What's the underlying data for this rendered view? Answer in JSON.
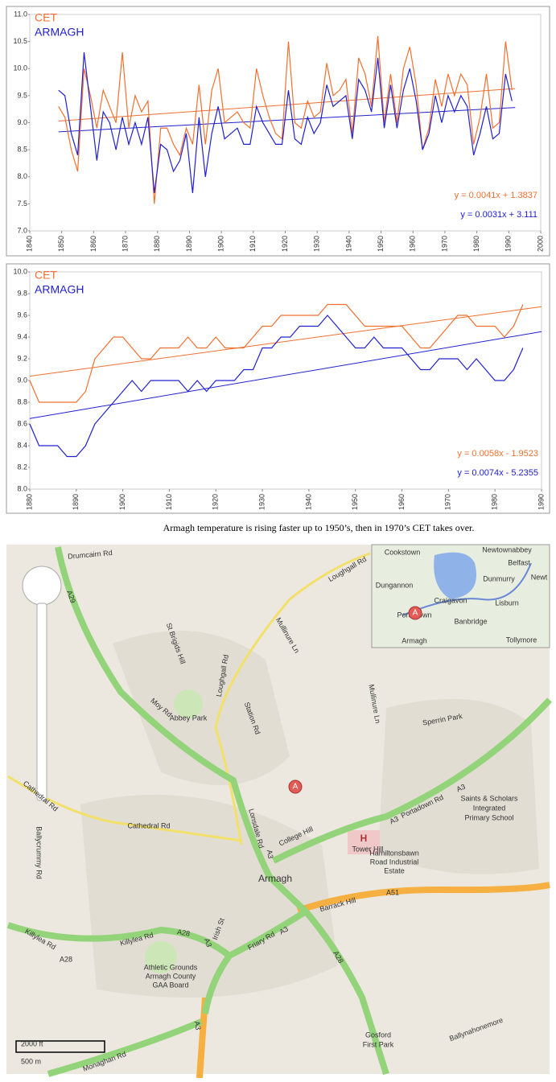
{
  "chart_data": [
    {
      "type": "line",
      "legend": "upper left",
      "x": [
        1849,
        1851,
        1853,
        1855,
        1857,
        1859,
        1861,
        1863,
        1865,
        1867,
        1869,
        1871,
        1873,
        1875,
        1877,
        1879,
        1881,
        1883,
        1885,
        1887,
        1889,
        1891,
        1893,
        1895,
        1897,
        1899,
        1901,
        1903,
        1905,
        1907,
        1909,
        1911,
        1913,
        1915,
        1917,
        1919,
        1921,
        1923,
        1925,
        1927,
        1929,
        1931,
        1933,
        1935,
        1937,
        1939,
        1941,
        1943,
        1945,
        1947,
        1949,
        1951,
        1953,
        1955,
        1957,
        1959,
        1961,
        1963,
        1965,
        1967,
        1969,
        1971,
        1973,
        1975,
        1977,
        1979,
        1981,
        1983,
        1985,
        1987,
        1989,
        1991
      ],
      "series": [
        {
          "name": "CET",
          "color": "#f07030",
          "values": [
            9.3,
            9.1,
            8.5,
            8.1,
            10.0,
            9.5,
            8.9,
            9.6,
            9.3,
            9.0,
            10.3,
            8.9,
            9.5,
            9.2,
            9.4,
            7.5,
            8.9,
            8.9,
            8.6,
            8.4,
            8.9,
            8.6,
            9.7,
            8.6,
            9.6,
            10.0,
            9.0,
            9.1,
            9.2,
            9.0,
            8.9,
            10.0,
            9.5,
            9.1,
            8.8,
            8.7,
            10.5,
            9.0,
            8.9,
            9.4,
            9.1,
            9.2,
            10.1,
            9.5,
            9.6,
            9.8,
            8.8,
            10.2,
            9.9,
            9.3,
            10.6,
            9.0,
            9.9,
            9.0,
            10.0,
            10.4,
            9.7,
            8.5,
            8.9,
            9.8,
            9.3,
            9.9,
            9.5,
            9.9,
            9.7,
            8.6,
            9.1,
            9.9,
            8.9,
            9.0,
            10.5,
            9.6
          ]
        },
        {
          "name": "ARMAGH",
          "color": "#2020d0",
          "values": [
            9.6,
            9.5,
            8.8,
            8.4,
            10.3,
            9.3,
            8.3,
            9.2,
            9.0,
            8.5,
            9.1,
            8.6,
            9.0,
            8.6,
            9.1,
            7.7,
            8.6,
            8.5,
            8.1,
            8.3,
            8.8,
            7.7,
            9.1,
            8.0,
            8.8,
            9.3,
            8.7,
            8.8,
            8.9,
            8.6,
            8.6,
            9.3,
            9.0,
            8.8,
            8.6,
            8.6,
            9.6,
            8.7,
            8.6,
            9.1,
            8.8,
            9.0,
            9.7,
            9.3,
            9.4,
            9.5,
            8.7,
            9.8,
            9.6,
            9.2,
            10.2,
            8.9,
            9.7,
            8.9,
            9.6,
            10.0,
            9.4,
            8.5,
            8.8,
            9.5,
            9.0,
            9.5,
            9.2,
            9.5,
            9.3,
            8.4,
            8.8,
            9.3,
            8.7,
            8.8,
            9.9,
            9.4
          ]
        }
      ],
      "trendlines": [
        {
          "color": "#f07030",
          "x": [
            1849,
            1992
          ],
          "values": [
            9.03,
            9.63
          ]
        },
        {
          "color": "#2020d0",
          "x": [
            1849,
            1992
          ],
          "values": [
            8.83,
            9.28
          ]
        }
      ],
      "annotations": [
        {
          "text": "y = 0.0041x + 1.3837",
          "color": "#f07030"
        },
        {
          "text": "y = 0.0031x + 3.111",
          "color": "#2020d0"
        }
      ],
      "xlim": [
        1840,
        2000
      ],
      "xticks": [
        1840,
        1850,
        1860,
        1870,
        1880,
        1890,
        1900,
        1910,
        1920,
        1930,
        1940,
        1950,
        1960,
        1970,
        1980,
        1990,
        2000
      ],
      "ylim": [
        7,
        11
      ],
      "yticks": [
        {
          "value": 7,
          "label": "7.0"
        },
        7.5,
        {
          "value": 8,
          "label": "8.0"
        },
        8.5,
        {
          "value": 9,
          "label": "9.0"
        },
        9.5,
        {
          "value": 10,
          "label": "10.0"
        },
        10.5,
        {
          "value": 11,
          "label": "11.0"
        }
      ],
      "grid": false
    },
    {
      "type": "line",
      "legend": "upper left",
      "x": [
        1880,
        1882,
        1884,
        1886,
        1888,
        1890,
        1892,
        1894,
        1896,
        1898,
        1900,
        1902,
        1904,
        1906,
        1908,
        1910,
        1912,
        1914,
        1916,
        1918,
        1920,
        1922,
        1924,
        1926,
        1928,
        1930,
        1932,
        1934,
        1936,
        1938,
        1940,
        1942,
        1944,
        1946,
        1948,
        1950,
        1952,
        1954,
        1956,
        1958,
        1960,
        1962,
        1964,
        1966,
        1968,
        1970,
        1972,
        1974,
        1976,
        1978,
        1980,
        1982,
        1984,
        1986
      ],
      "series": [
        {
          "name": "CET",
          "color": "#f07030",
          "values": [
            9.0,
            8.8,
            8.8,
            8.8,
            8.8,
            8.8,
            8.9,
            9.2,
            9.3,
            9.4,
            9.4,
            9.3,
            9.2,
            9.2,
            9.3,
            9.3,
            9.3,
            9.4,
            9.3,
            9.3,
            9.4,
            9.3,
            9.3,
            9.3,
            9.4,
            9.5,
            9.5,
            9.6,
            9.6,
            9.6,
            9.6,
            9.6,
            9.7,
            9.7,
            9.7,
            9.6,
            9.5,
            9.5,
            9.5,
            9.5,
            9.5,
            9.4,
            9.3,
            9.3,
            9.4,
            9.5,
            9.6,
            9.6,
            9.5,
            9.5,
            9.5,
            9.4,
            9.5,
            9.7
          ]
        },
        {
          "name": "ARMAGH",
          "color": "#2020d0",
          "values": [
            8.6,
            8.4,
            8.4,
            8.4,
            8.3,
            8.3,
            8.4,
            8.6,
            8.7,
            8.8,
            8.9,
            9.0,
            8.9,
            9.0,
            9.0,
            9.0,
            9.0,
            8.9,
            9.0,
            8.9,
            9.0,
            9.0,
            9.0,
            9.1,
            9.1,
            9.3,
            9.3,
            9.4,
            9.4,
            9.5,
            9.5,
            9.5,
            9.6,
            9.5,
            9.4,
            9.3,
            9.3,
            9.4,
            9.3,
            9.3,
            9.3,
            9.2,
            9.1,
            9.1,
            9.2,
            9.2,
            9.2,
            9.1,
            9.2,
            9.1,
            9.0,
            9.0,
            9.1,
            9.3
          ]
        }
      ],
      "trendlines": [
        {
          "color": "#f07030",
          "x": [
            1880,
            1990
          ],
          "values": [
            9.04,
            9.68
          ]
        },
        {
          "color": "#2020d0",
          "x": [
            1880,
            1990
          ],
          "values": [
            8.65,
            9.45
          ]
        }
      ],
      "annotations": [
        {
          "text": "y = 0.0058x - 1.9523",
          "color": "#f07030"
        },
        {
          "text": "y = 0.0074x - 5.2355",
          "color": "#2020d0"
        }
      ],
      "xlim": [
        1880,
        1990
      ],
      "xticks": [
        1880,
        1890,
        1900,
        1910,
        1920,
        1930,
        1940,
        1950,
        1960,
        1970,
        1980,
        1990
      ],
      "ylim": [
        8,
        10
      ],
      "yticks": [
        {
          "value": 8,
          "label": "8.0"
        },
        8.2,
        8.4,
        8.6,
        8.8,
        {
          "value": 9,
          "label": "9.0"
        },
        9.2,
        9.4,
        9.6,
        9.8,
        {
          "value": 10,
          "label": "10.0"
        }
      ],
      "grid": false
    }
  ],
  "caption": "Armagh temperature is rising faster up to 1950’s, then in 1970’s CET takes over.",
  "map": {
    "labels": [
      "Drumcairn Rd",
      "A29",
      "Loughgall Rd",
      "Mullinure Ln",
      "St Brigids Hill",
      "Abbey Park",
      "Station Rd",
      "Moy Rd",
      "Loughgall Rd",
      "Cathedral Rd",
      "Cathedral Rd",
      "Lonsdale Rd",
      "A3",
      "College Hill",
      "A3",
      "Portadown Rd",
      "A3",
      "Tower Hill",
      "Hamiltonsbawn",
      "Road Industrial",
      "Estate",
      "Saints & Scholars",
      "Integrated",
      "Primary School",
      "Armagh",
      "Barrack Hill",
      "A51",
      "Killylea Rd",
      "A28",
      "Killylea Rd",
      "A28",
      "A3",
      "Irish St",
      "Friary Rd",
      "A3",
      "A28",
      "Athletic Grounds",
      "Armagh County",
      "GAA Board",
      "Ballycrummy Rd",
      "Gosford",
      "First Park",
      "Ballynahonemore",
      "Monaghan Rd",
      "Sperrin Park",
      "Mullinure Ln",
      "A3",
      "2000 ft",
      "500 m",
      "H",
      "A",
      "Cookstown",
      "Newtownabbey",
      "Belfast",
      "Dungannon",
      "Dunmurry",
      "Newt",
      "Craigavon",
      "Lisburn",
      "Portadown",
      "Banbridge",
      "Armagh",
      "Tollymore",
      "A"
    ]
  }
}
